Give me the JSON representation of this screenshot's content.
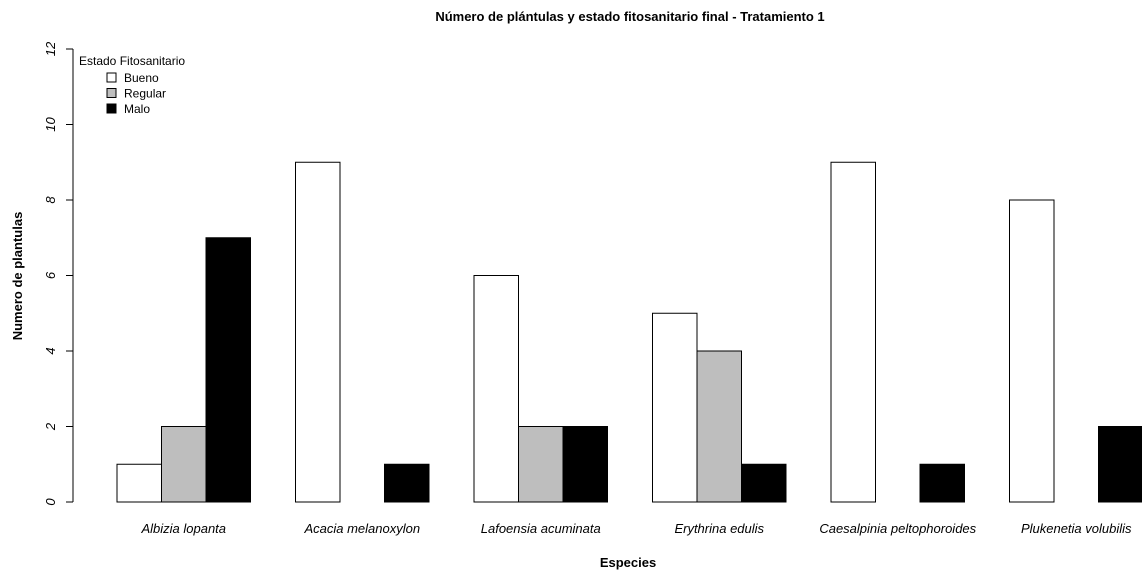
{
  "chart_data": {
    "type": "bar",
    "title": "Número de plántulas y estado fitosanitario final - Tratamiento 1",
    "xlabel": "Especies",
    "ylabel": "Numero de plantulas",
    "ylim": [
      0,
      12
    ],
    "yticks": [
      "0",
      "2",
      "4",
      "6",
      "8",
      "10",
      "12"
    ],
    "categories": [
      "Albizia lopanta",
      "Acacia melanoxylon",
      "Lafoensia acuminata",
      "Erythrina edulis",
      "Caesalpinia peltophoroides",
      "Plukenetia volubilis"
    ],
    "series": [
      {
        "name": "Bueno",
        "color": "#ffffff",
        "values": [
          1,
          9,
          6,
          5,
          9,
          8
        ]
      },
      {
        "name": "Regular",
        "color": "#bebebe",
        "values": [
          2,
          0,
          2,
          4,
          0,
          0
        ]
      },
      {
        "name": "Malo",
        "color": "#000000",
        "values": [
          7,
          1,
          2,
          1,
          1,
          2
        ]
      }
    ],
    "legend": {
      "title": "Estado Fitosanitario",
      "position": "top-left"
    },
    "grid": false
  }
}
